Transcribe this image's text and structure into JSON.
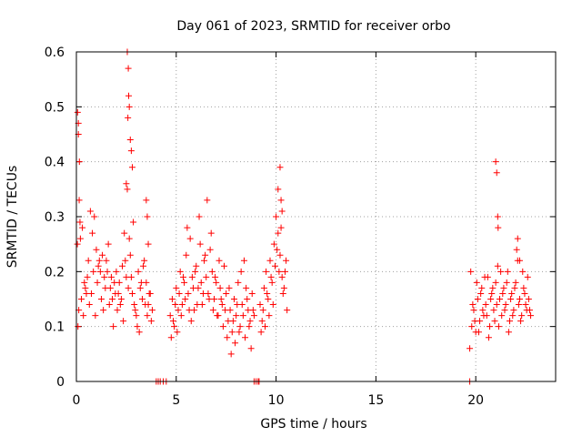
{
  "chart_data": {
    "type": "scatter",
    "title": "Day 061 of 2023, SRMTID for receiver orbo",
    "xlabel": "GPS time / hours",
    "ylabel": "SRMTID / TECUs",
    "xlim": [
      0,
      24
    ],
    "ylim": [
      0,
      0.6
    ],
    "xticks": [
      0,
      5,
      10,
      15,
      20
    ],
    "yticks": [
      0,
      0.1,
      0.2,
      0.3,
      0.4,
      0.5,
      0.6
    ],
    "xtick_labels": [
      "0",
      "5",
      "10",
      "15",
      "20"
    ],
    "ytick_labels": [
      "0",
      "0.1",
      "0.2",
      "0.3",
      "0.4",
      "0.5",
      "0.6"
    ],
    "grid": true,
    "marker": "+",
    "color": "#ff0000",
    "series": [
      {
        "name": "SRMTID",
        "x": [
          0.05,
          0.1,
          0.15,
          0.2,
          0.3,
          0.4,
          0.5,
          0.6,
          0.7,
          0.8,
          0.9,
          1.0,
          1.1,
          1.2,
          1.3,
          1.4,
          1.5,
          1.6,
          1.7,
          1.8,
          1.9,
          2.0,
          2.1,
          2.2,
          2.3,
          2.4,
          2.5,
          2.6,
          2.7,
          2.8,
          2.9,
          3.0,
          3.1,
          3.2,
          3.3,
          3.4,
          3.5,
          3.6,
          3.7,
          3.8,
          0.08,
          0.12,
          0.25,
          0.35,
          0.45,
          0.55,
          0.65,
          0.75,
          0.85,
          0.95,
          1.05,
          1.15,
          1.25,
          1.35,
          1.45,
          1.55,
          1.65,
          1.75,
          1.85,
          1.95,
          2.05,
          2.15,
          2.25,
          2.35,
          2.45,
          2.55,
          2.65,
          2.75,
          2.85,
          2.95,
          3.05,
          3.15,
          3.25,
          3.35,
          3.45,
          3.55,
          3.65,
          3.75,
          0.06,
          0.1,
          0.14,
          0.18,
          2.55,
          2.6,
          2.62,
          2.65,
          2.7,
          2.75,
          2.8,
          2.5,
          2.58,
          3.5,
          3.55,
          3.6,
          4.7,
          4.8,
          4.9,
          5.0,
          5.1,
          5.2,
          5.3,
          5.4,
          5.5,
          5.6,
          5.7,
          5.8,
          5.9,
          6.0,
          6.1,
          6.2,
          6.3,
          6.4,
          6.5,
          6.6,
          6.7,
          6.8,
          6.9,
          7.0,
          7.1,
          7.2,
          7.3,
          7.4,
          7.5,
          7.6,
          7.7,
          7.8,
          7.9,
          8.0,
          8.1,
          8.2,
          8.3,
          8.4,
          8.5,
          8.6,
          8.7,
          8.8,
          8.9,
          4.75,
          4.85,
          4.95,
          5.05,
          5.15,
          5.25,
          5.35,
          5.45,
          5.55,
          5.65,
          5.75,
          5.85,
          5.95,
          6.05,
          6.15,
          6.25,
          6.35,
          6.45,
          6.55,
          6.65,
          6.75,
          6.85,
          6.95,
          7.05,
          7.15,
          7.25,
          7.35,
          7.45,
          7.55,
          7.65,
          7.75,
          7.85,
          7.95,
          8.05,
          8.15,
          8.25,
          8.35,
          8.45,
          8.55,
          8.65,
          8.75,
          8.85,
          9.2,
          9.3,
          9.4,
          9.5,
          9.6,
          9.7,
          9.8,
          9.9,
          10.0,
          10.1,
          10.2,
          10.3,
          10.4,
          10.5,
          9.25,
          9.35,
          9.45,
          9.55,
          9.65,
          9.75,
          9.85,
          9.95,
          10.05,
          10.15,
          10.25,
          10.35,
          10.45,
          10.55,
          10.2,
          10.25,
          10.1,
          10.3,
          19.7,
          19.8,
          19.9,
          20.0,
          20.1,
          20.2,
          20.3,
          20.4,
          20.5,
          20.6,
          20.7,
          20.8,
          20.9,
          21.0,
          21.1,
          21.2,
          21.3,
          21.4,
          21.5,
          21.6,
          21.7,
          21.8,
          21.9,
          22.0,
          22.1,
          22.2,
          22.3,
          22.4,
          22.5,
          22.6,
          22.7,
          19.75,
          19.85,
          19.95,
          20.05,
          20.15,
          20.25,
          20.35,
          20.45,
          20.55,
          20.65,
          20.75,
          20.85,
          20.95,
          21.05,
          21.15,
          21.25,
          21.35,
          21.45,
          21.55,
          21.65,
          21.75,
          21.85,
          21.95,
          22.05,
          22.15,
          22.25,
          22.35,
          22.45,
          22.55,
          22.65,
          22.75,
          21.0,
          21.05,
          21.1,
          21.12,
          22.1,
          22.2,
          4.0,
          4.1,
          4.2,
          4.35,
          4.5,
          8.9,
          9.0,
          9.1,
          9.15,
          19.7
        ],
        "y": [
          0.25,
          0.47,
          0.4,
          0.26,
          0.28,
          0.18,
          0.16,
          0.22,
          0.31,
          0.27,
          0.3,
          0.24,
          0.21,
          0.2,
          0.23,
          0.19,
          0.22,
          0.25,
          0.17,
          0.15,
          0.18,
          0.2,
          0.16,
          0.14,
          0.21,
          0.27,
          0.19,
          0.17,
          0.23,
          0.16,
          0.14,
          0.12,
          0.2,
          0.17,
          0.15,
          0.22,
          0.18,
          0.14,
          0.16,
          0.13,
          0.1,
          0.13,
          0.15,
          0.12,
          0.17,
          0.19,
          0.14,
          0.16,
          0.2,
          0.12,
          0.18,
          0.22,
          0.15,
          0.13,
          0.17,
          0.2,
          0.14,
          0.19,
          0.1,
          0.16,
          0.13,
          0.18,
          0.15,
          0.11,
          0.22,
          0.35,
          0.26,
          0.19,
          0.29,
          0.13,
          0.1,
          0.09,
          0.18,
          0.21,
          0.14,
          0.12,
          0.16,
          0.11,
          0.49,
          0.45,
          0.33,
          0.29,
          0.6,
          0.57,
          0.52,
          0.5,
          0.44,
          0.42,
          0.39,
          0.36,
          0.48,
          0.33,
          0.3,
          0.25,
          0.12,
          0.15,
          0.1,
          0.17,
          0.13,
          0.2,
          0.14,
          0.18,
          0.23,
          0.16,
          0.26,
          0.19,
          0.13,
          0.21,
          0.17,
          0.25,
          0.14,
          0.22,
          0.19,
          0.16,
          0.24,
          0.2,
          0.15,
          0.18,
          0.12,
          0.17,
          0.14,
          0.21,
          0.16,
          0.11,
          0.13,
          0.09,
          0.15,
          0.12,
          0.18,
          0.1,
          0.14,
          0.22,
          0.17,
          0.13,
          0.11,
          0.16,
          0.12,
          0.08,
          0.11,
          0.14,
          0.09,
          0.16,
          0.12,
          0.19,
          0.15,
          0.28,
          0.13,
          0.11,
          0.17,
          0.2,
          0.14,
          0.3,
          0.18,
          0.16,
          0.23,
          0.33,
          0.15,
          0.27,
          0.13,
          0.19,
          0.12,
          0.22,
          0.15,
          0.1,
          0.13,
          0.08,
          0.17,
          0.05,
          0.11,
          0.07,
          0.14,
          0.09,
          0.2,
          0.12,
          0.08,
          0.15,
          0.1,
          0.06,
          0.13,
          0.14,
          0.11,
          0.17,
          0.2,
          0.15,
          0.22,
          0.18,
          0.25,
          0.3,
          0.27,
          0.23,
          0.19,
          0.17,
          0.22,
          0.09,
          0.13,
          0.1,
          0.16,
          0.12,
          0.19,
          0.14,
          0.21,
          0.24,
          0.2,
          0.28,
          0.16,
          0.2,
          0.13,
          0.39,
          0.33,
          0.35,
          0.31,
          0.06,
          0.1,
          0.13,
          0.09,
          0.15,
          0.11,
          0.17,
          0.12,
          0.14,
          0.19,
          0.1,
          0.16,
          0.13,
          0.18,
          0.21,
          0.15,
          0.12,
          0.17,
          0.14,
          0.2,
          0.11,
          0.16,
          0.13,
          0.18,
          0.22,
          0.15,
          0.12,
          0.17,
          0.14,
          0.19,
          0.13,
          0.2,
          0.14,
          0.11,
          0.18,
          0.09,
          0.16,
          0.13,
          0.19,
          0.12,
          0.08,
          0.15,
          0.17,
          0.11,
          0.14,
          0.1,
          0.2,
          0.16,
          0.13,
          0.18,
          0.09,
          0.15,
          0.12,
          0.17,
          0.24,
          0.14,
          0.11,
          0.2,
          0.16,
          0.13,
          0.15,
          0.12,
          0.4,
          0.38,
          0.3,
          0.28,
          0.26,
          0.22,
          0,
          0,
          0,
          0,
          0,
          0,
          0,
          0,
          0,
          0
        ]
      }
    ]
  }
}
